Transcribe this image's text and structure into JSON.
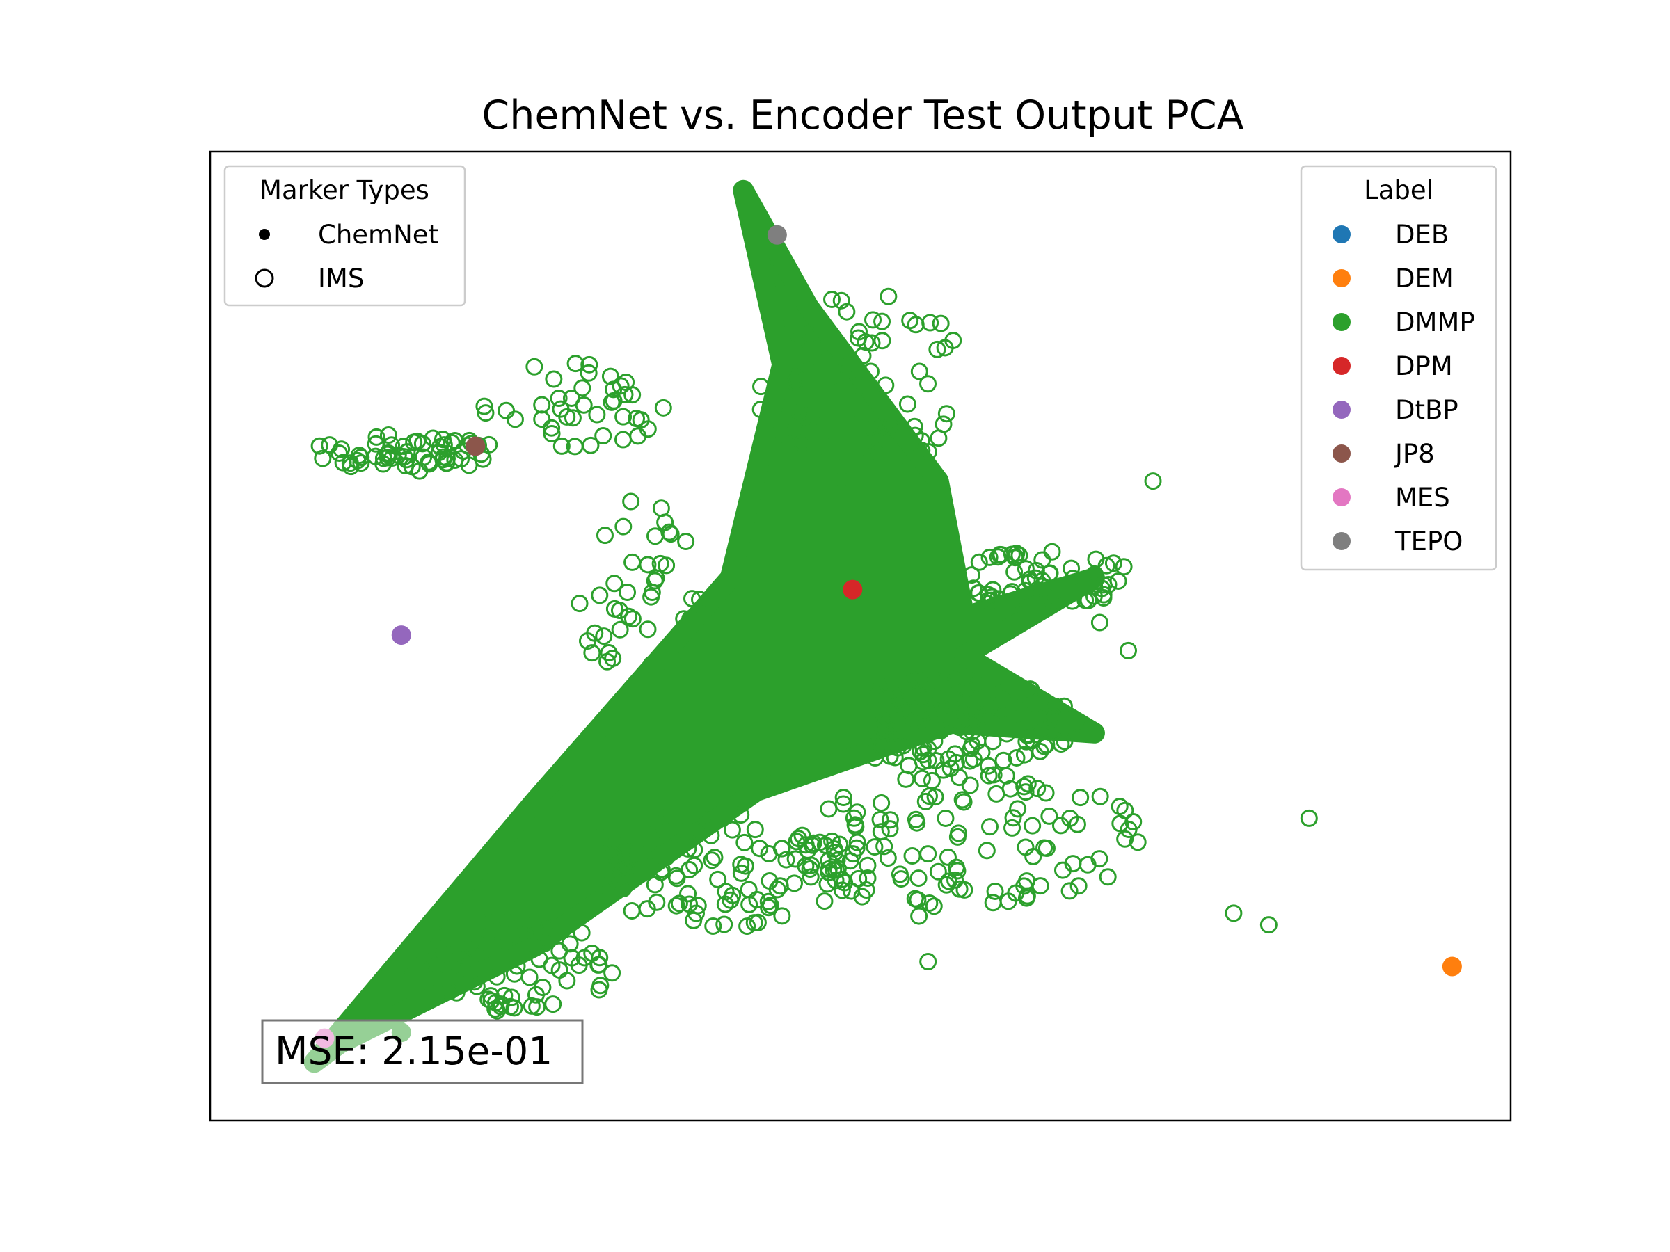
{
  "chart_data": {
    "type": "scatter",
    "title": "ChemNet vs. Encoder Test Output PCA",
    "xlabel": "",
    "ylabel": "",
    "xlim": [
      0,
      1
    ],
    "ylim": [
      0,
      1
    ],
    "grid": false,
    "colors": {
      "DEB": "#1f77b4",
      "DEM": "#ff7f0e",
      "DMMP": "#2ca02c",
      "DPM": "#d62728",
      "DtBP": "#9467bd",
      "JP8": "#8c564b",
      "MES": "#e377c2",
      "TEPO": "#7f7f7f"
    },
    "marker_legend": {
      "title": "Marker Types",
      "placement": "upper left",
      "items": [
        {
          "label": "ChemNet",
          "marker": "filled-dot"
        },
        {
          "label": "IMS",
          "marker": "open-circle"
        }
      ]
    },
    "label_legend": {
      "title": "Label",
      "placement": "upper right",
      "items": [
        "DEB",
        "DEM",
        "DMMP",
        "DPM",
        "DtBP",
        "JP8",
        "MES",
        "TEPO"
      ]
    },
    "annotation": "MSE: 2.15e-01",
    "chemnet_points": [
      {
        "label": "TEPO",
        "x": 0.436,
        "y": 0.914
      },
      {
        "label": "JP8",
        "x": 0.204,
        "y": 0.696
      },
      {
        "label": "DPM",
        "x": 0.494,
        "y": 0.548
      },
      {
        "label": "DtBP",
        "x": 0.147,
        "y": 0.501
      },
      {
        "label": "DEM",
        "x": 0.955,
        "y": 0.159
      },
      {
        "label": "DMMP",
        "x": 0.147,
        "y": 0.091
      },
      {
        "label": "MES",
        "x": 0.088,
        "y": 0.085
      }
    ],
    "ims_cloud": {
      "label": "DMMP",
      "core": [
        [
          0.08,
          0.06
        ],
        [
          0.25,
          0.33
        ],
        [
          0.4,
          0.56
        ],
        [
          0.44,
          0.78
        ],
        [
          0.41,
          0.96
        ],
        [
          0.46,
          0.84
        ],
        [
          0.56,
          0.66
        ],
        [
          0.58,
          0.52
        ],
        [
          0.68,
          0.56
        ],
        [
          0.58,
          0.48
        ],
        [
          0.68,
          0.4
        ],
        [
          0.57,
          0.41
        ],
        [
          0.42,
          0.34
        ],
        [
          0.25,
          0.18
        ],
        [
          0.1,
          0.08
        ]
      ],
      "scatter_regions": [
        {
          "cx": 0.5,
          "cy": 0.76,
          "rx": 0.08,
          "ry": 0.1,
          "n": 70
        },
        {
          "cx": 0.15,
          "cy": 0.69,
          "rx": 0.07,
          "ry": 0.02,
          "n": 60
        },
        {
          "cx": 0.28,
          "cy": 0.74,
          "rx": 0.07,
          "ry": 0.05,
          "n": 40
        },
        {
          "cx": 0.33,
          "cy": 0.54,
          "rx": 0.05,
          "ry": 0.1,
          "n": 40
        },
        {
          "cx": 0.58,
          "cy": 0.41,
          "rx": 0.1,
          "ry": 0.05,
          "n": 130
        },
        {
          "cx": 0.58,
          "cy": 0.29,
          "rx": 0.14,
          "ry": 0.07,
          "n": 110
        },
        {
          "cx": 0.4,
          "cy": 0.26,
          "rx": 0.12,
          "ry": 0.06,
          "n": 110
        },
        {
          "cx": 0.23,
          "cy": 0.16,
          "rx": 0.08,
          "ry": 0.05,
          "n": 70
        },
        {
          "cx": 0.64,
          "cy": 0.56,
          "rx": 0.07,
          "ry": 0.03,
          "n": 60
        }
      ],
      "outliers": [
        [
          0.725,
          0.66
        ],
        [
          0.845,
          0.312
        ],
        [
          0.787,
          0.214
        ],
        [
          0.814,
          0.202
        ],
        [
          0.552,
          0.164
        ],
        [
          0.545,
          0.211
        ],
        [
          0.706,
          0.485
        ],
        [
          0.684,
          0.514
        ]
      ]
    }
  }
}
